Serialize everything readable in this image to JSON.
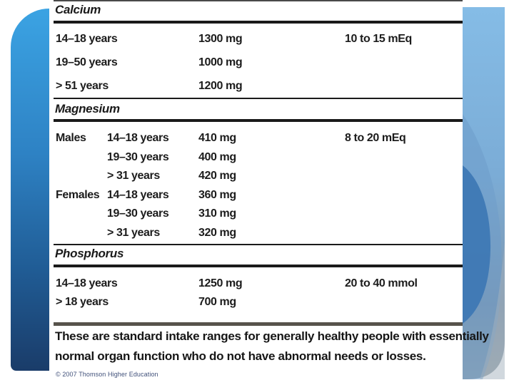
{
  "table": {
    "sections": [
      {
        "title": "Calcium",
        "age_in_first_column": true,
        "rows": [
          {
            "group": "",
            "age": "14–18 years",
            "amount": "1300 mg",
            "range": "10 to 15 mEq"
          },
          {
            "group": "",
            "age": "19–50 years",
            "amount": "1000 mg",
            "range": ""
          },
          {
            "group": "",
            "age": "> 51 years",
            "amount": "1200 mg",
            "range": ""
          }
        ]
      },
      {
        "title": "Magnesium",
        "age_in_first_column": false,
        "rows": [
          {
            "group": "Males",
            "age": "14–18 years",
            "amount": "410 mg",
            "range": "8 to 20 mEq"
          },
          {
            "group": "",
            "age": "19–30 years",
            "amount": "400 mg",
            "range": ""
          },
          {
            "group": "",
            "age": "> 31 years",
            "amount": "420 mg",
            "range": ""
          },
          {
            "group": "Females",
            "age": "14–18 years",
            "amount": "360 mg",
            "range": ""
          },
          {
            "group": "",
            "age": "19–30 years",
            "amount": "310 mg",
            "range": ""
          },
          {
            "group": "",
            "age": "> 31 years",
            "amount": "320 mg",
            "range": ""
          }
        ]
      },
      {
        "title": "Phosphorus",
        "age_in_first_column": true,
        "rows": [
          {
            "group": "",
            "age": "14–18 years",
            "amount": "1250 mg",
            "range": "20 to 40 mmol"
          },
          {
            "group": "",
            "age": "> 18 years",
            "amount": "700 mg",
            "range": ""
          }
        ]
      }
    ]
  },
  "note": {
    "line1": "These are standard intake ranges for generally healthy people with essentially",
    "line2": "normal organ function who do not have abnormal needs or losses."
  },
  "copyright": "© 2007 Thomson Higher Education",
  "colors": {
    "left_bar_top": "#3ba3e3",
    "left_bar_bottom": "#1a3c69",
    "right_strip_top": "#85bce6",
    "right_strip_dark_curve": "#3c77b4",
    "right_strip_bottom": "#9aa5ab",
    "rule_black": "#1a1a1a",
    "rule_footer": "#57534b",
    "text": "#1c1c1c"
  }
}
